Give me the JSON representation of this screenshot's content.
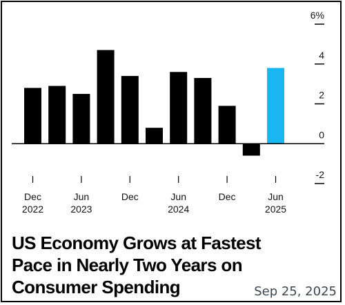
{
  "chart_data": {
    "type": "bar",
    "categories": [
      "2022 Q4",
      "2023 Q1",
      "2023 Q2",
      "2023 Q3",
      "2023 Q4",
      "2024 Q1",
      "2024 Q2",
      "2024 Q3",
      "2024 Q4",
      "2025 Q1",
      "2025 Q2"
    ],
    "values": [
      2.8,
      2.9,
      2.5,
      4.7,
      3.4,
      0.8,
      3.6,
      3.3,
      1.9,
      -0.6,
      3.8
    ],
    "highlight_index": 10,
    "bar_color": "#000000",
    "highlight_color": "#1ab6f0",
    "ylim": [
      -2,
      6
    ],
    "yticks": [
      {
        "value": 6,
        "label": "6%"
      },
      {
        "value": 4,
        "label": "4"
      },
      {
        "value": 2,
        "label": "2"
      },
      {
        "value": 0,
        "label": "0"
      },
      {
        "value": -2,
        "label": "-2"
      }
    ],
    "xticks": [
      {
        "index": 0,
        "month": "Dec",
        "year": "2022"
      },
      {
        "index": 2,
        "month": "Jun",
        "year": "2023"
      },
      {
        "index": 4,
        "month": "Dec",
        "year": ""
      },
      {
        "index": 6,
        "month": "Jun",
        "year": "2024"
      },
      {
        "index": 8,
        "month": "Dec",
        "year": ""
      },
      {
        "index": 10,
        "month": "Jun",
        "year": "2025"
      }
    ],
    "title": "US Economy Grows at Fastest Pace in Nearly Two Years on Consumer Spending",
    "xlabel": "",
    "ylabel": "",
    "grid": false,
    "legend": "none"
  },
  "headline": {
    "line1": "US Economy Grows at Fastest",
    "line2": "Pace in Nearly Two Years on",
    "line3": "Consumer Spending"
  },
  "date_stamp": "Sep 25, 2025"
}
